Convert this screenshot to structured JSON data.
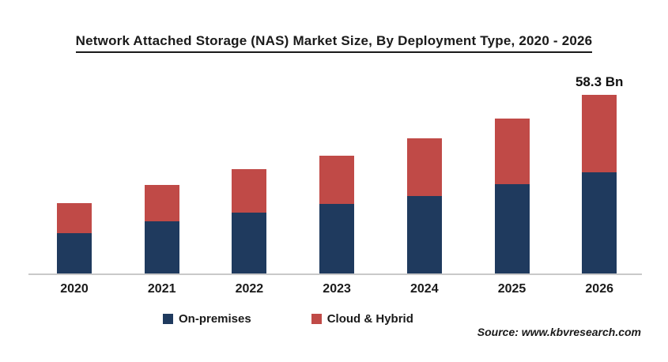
{
  "title": "Network Attached Storage (NAS) Market Size, By Deployment Type, 2020 - 2026",
  "source": "Source: www.kbvresearch.com",
  "chart_data": {
    "type": "bar",
    "stacked": true,
    "unit": "USD Bn",
    "title": "Network Attached Storage (NAS) Market Size, By Deployment Type, 2020 - 2026",
    "categories": [
      "2020",
      "2021",
      "2022",
      "2023",
      "2024",
      "2025",
      "2026"
    ],
    "series": [
      {
        "name": "On-premises",
        "color": "#1F3A5E",
        "values": [
          13.1,
          17.0,
          19.9,
          22.6,
          25.3,
          29.1,
          33.1
        ]
      },
      {
        "name": "Cloud & Hybrid",
        "color": "#C04A47",
        "values": [
          9.8,
          11.9,
          14.1,
          15.9,
          18.9,
          21.5,
          25.2
        ]
      }
    ],
    "totals": [
      22.9,
      28.9,
      34.0,
      38.5,
      44.2,
      50.6,
      58.3
    ],
    "annotation": {
      "category": "2026",
      "label": "58.3 Bn"
    },
    "xlabel": "",
    "ylabel": "",
    "y_axis_visible": false,
    "grid": false,
    "legend_position": "bottom"
  }
}
